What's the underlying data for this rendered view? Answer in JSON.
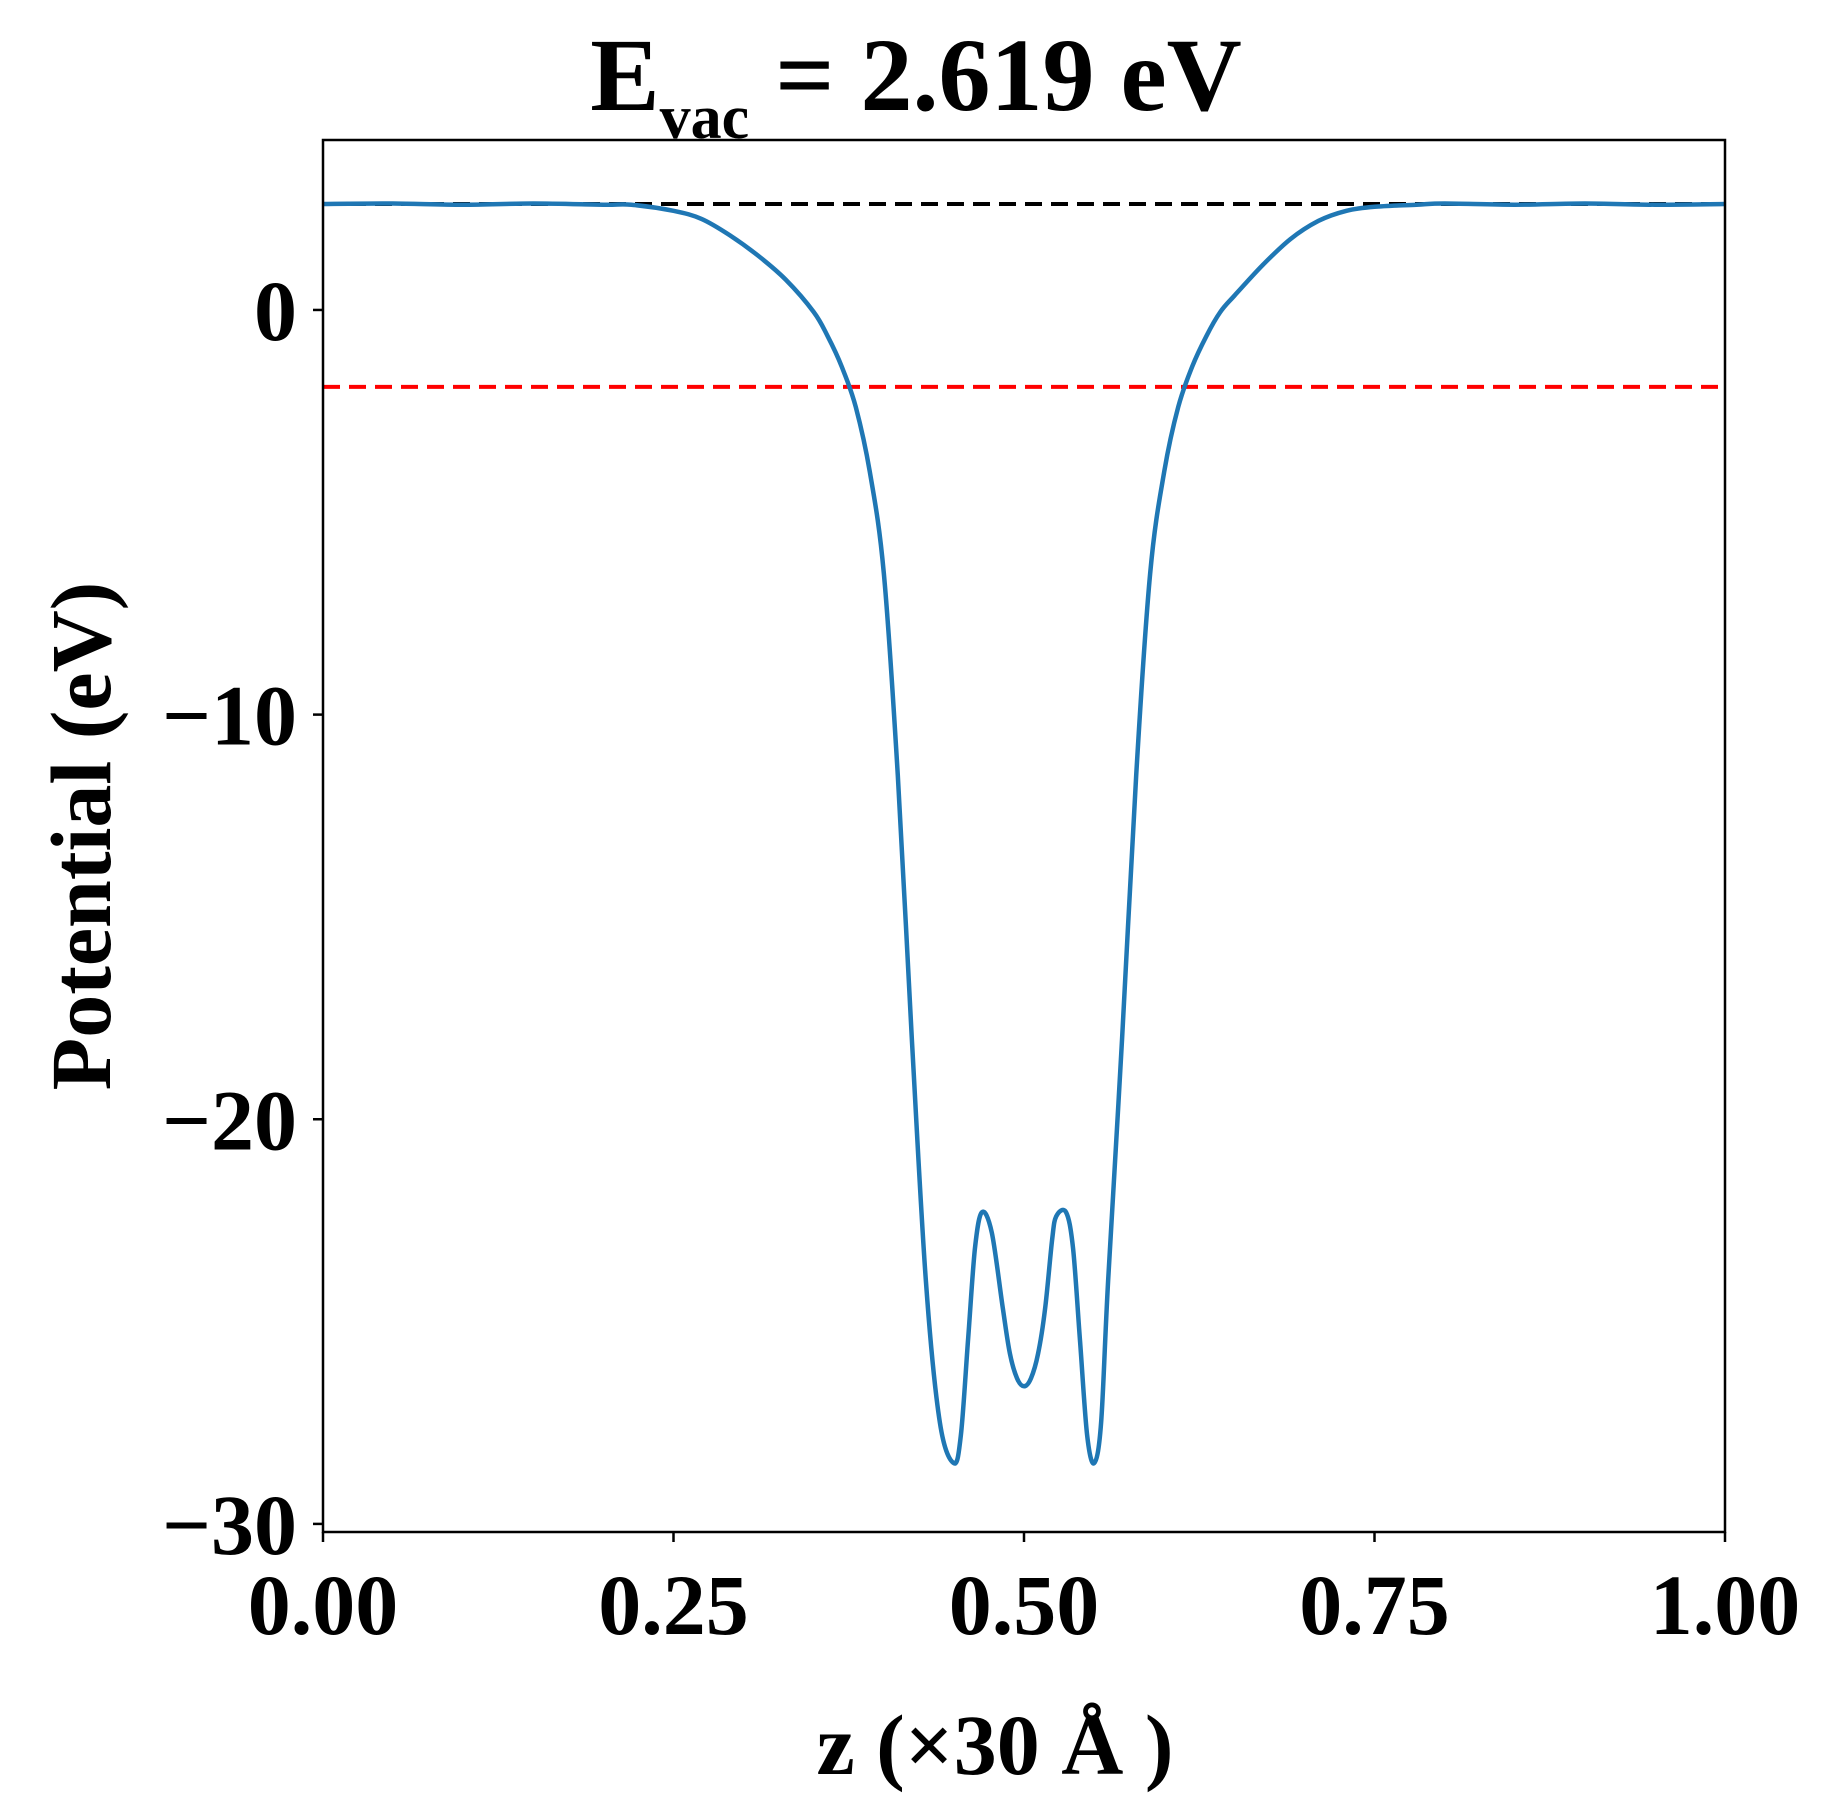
{
  "chart_data": {
    "type": "line",
    "title": {
      "prefix": "E",
      "subscript": "vac",
      "suffix": " = 2.619 eV"
    },
    "xlabel": "z (×30 Å )",
    "ylabel": "Potential (eV)",
    "xlim": [
      0,
      1
    ],
    "ylim": [
      -30.2,
      4.2
    ],
    "xticks": [
      0,
      0.25,
      0.5,
      0.75,
      1
    ],
    "xtick_labels": [
      "0.00",
      "0.25",
      "0.50",
      "0.75",
      "1.00"
    ],
    "yticks": [
      0,
      -10,
      -20,
      -30
    ],
    "ytick_labels": [
      "0",
      "−10",
      "−20",
      "−30"
    ],
    "grid": false,
    "hlines": [
      {
        "y": 2.619,
        "color": "#000000",
        "style": "dashed"
      },
      {
        "y": -1.9,
        "color": "#ff0000",
        "style": "dashed"
      }
    ],
    "series": [
      {
        "color": "#1f77b4",
        "x": [
          0,
          0.05,
          0.1,
          0.15,
          0.2,
          0.22,
          0.25,
          0.27,
          0.29,
          0.31,
          0.33,
          0.35,
          0.36,
          0.37,
          0.38,
          0.39,
          0.4,
          0.41,
          0.42,
          0.43,
          0.44,
          0.45,
          0.455,
          0.46,
          0.465,
          0.47,
          0.477,
          0.485,
          0.49,
          0.495,
          0.5,
          0.505,
          0.51,
          0.515,
          0.52,
          0.523,
          0.53,
          0.535,
          0.54,
          0.545,
          0.55,
          0.555,
          0.56,
          0.57,
          0.58,
          0.59,
          0.6,
          0.61,
          0.62,
          0.63,
          0.64,
          0.65,
          0.67,
          0.69,
          0.71,
          0.73,
          0.75,
          0.78,
          0.8,
          0.85,
          0.9,
          0.95,
          1.0
        ],
        "y": [
          2.619,
          2.63,
          2.6,
          2.63,
          2.6,
          2.6,
          2.45,
          2.25,
          1.85,
          1.35,
          0.75,
          -0.05,
          -0.65,
          -1.4,
          -2.4,
          -4.0,
          -6.5,
          -11.5,
          -18.0,
          -24.0,
          -27.5,
          -28.5,
          -27.8,
          -25.5,
          -23.2,
          -22.3,
          -22.8,
          -24.7,
          -25.8,
          -26.4,
          -26.6,
          -26.4,
          -25.8,
          -24.7,
          -23.0,
          -22.4,
          -22.3,
          -23.2,
          -25.5,
          -27.8,
          -28.5,
          -27.5,
          -24.0,
          -18.0,
          -11.5,
          -6.5,
          -4.0,
          -2.4,
          -1.4,
          -0.65,
          -0.05,
          0.35,
          1.1,
          1.75,
          2.2,
          2.45,
          2.55,
          2.6,
          2.63,
          2.6,
          2.63,
          2.6,
          2.619
        ]
      }
    ]
  }
}
